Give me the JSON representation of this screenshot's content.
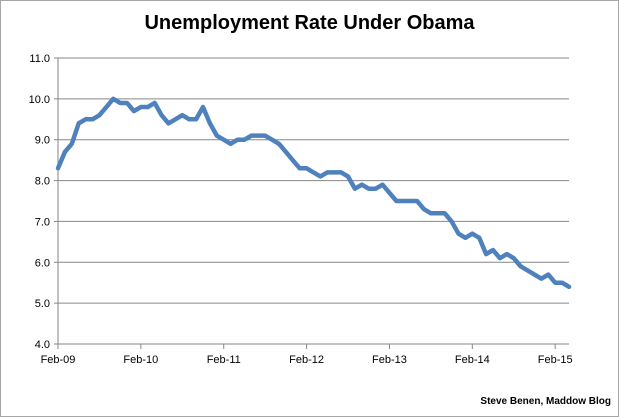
{
  "chart_data": {
    "type": "line",
    "title": "Unemployment Rate Under Obama",
    "credit": "Steve Benen, Maddow Blog",
    "xlabel": "",
    "ylabel": "",
    "ylim": [
      4.0,
      11.0
    ],
    "yticks": [
      4.0,
      5.0,
      6.0,
      7.0,
      8.0,
      9.0,
      10.0,
      11.0
    ],
    "ytick_labels": [
      "4.0",
      "5.0",
      "6.0",
      "7.0",
      "8.0",
      "9.0",
      "10.0",
      "11.0"
    ],
    "x_start": "Feb-09",
    "xtick_labels": [
      "Feb-09",
      "Feb-10",
      "Feb-11",
      "Feb-12",
      "Feb-13",
      "Feb-14",
      "Feb-15"
    ],
    "xtick_index": [
      0,
      12,
      24,
      36,
      48,
      60,
      72
    ],
    "grid": true,
    "line_color": "#4f81bd",
    "series": [
      {
        "values": [
          8.3,
          8.7,
          8.9,
          9.4,
          9.5,
          9.5,
          9.6,
          9.8,
          10.0,
          9.9,
          9.9,
          9.7,
          9.8,
          9.8,
          9.9,
          9.6,
          9.4,
          9.5,
          9.6,
          9.5,
          9.5,
          9.8,
          9.4,
          9.1,
          9.0,
          8.9,
          9.0,
          9.0,
          9.1,
          9.1,
          9.1,
          9.0,
          8.9,
          8.7,
          8.5,
          8.3,
          8.3,
          8.2,
          8.1,
          8.2,
          8.2,
          8.2,
          8.1,
          7.8,
          7.9,
          7.8,
          7.8,
          7.9,
          7.7,
          7.5,
          7.5,
          7.5,
          7.5,
          7.3,
          7.2,
          7.2,
          7.2,
          7.0,
          6.7,
          6.6,
          6.7,
          6.6,
          6.2,
          6.3,
          6.1,
          6.2,
          6.1,
          5.9,
          5.8,
          5.7,
          5.6,
          5.7,
          5.5,
          5.5,
          5.4
        ]
      }
    ]
  }
}
